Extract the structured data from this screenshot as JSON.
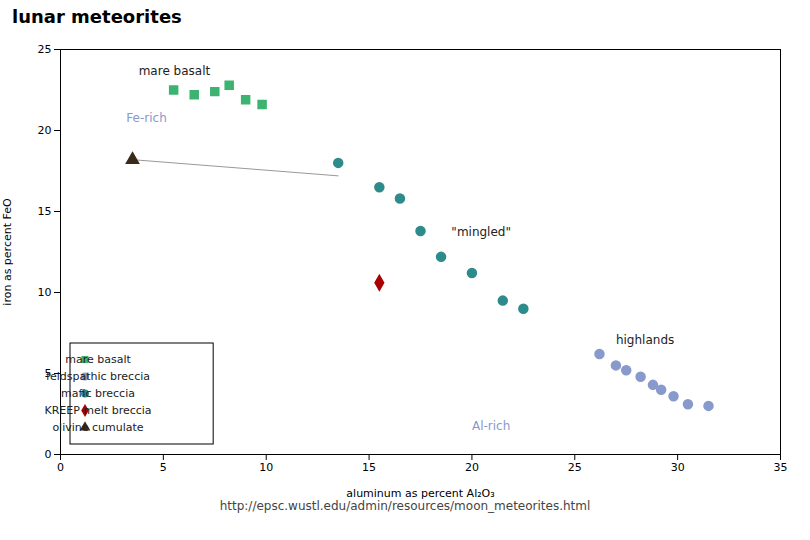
{
  "chart_data": {
    "type": "scatter",
    "title": "lunar meteorites",
    "caption": "http://epsc.wustl.edu/admin/resources/moon_meteorites.html",
    "x_label": "aluminum as percent Al₂O₃",
    "y_label": "iron as percent FeO",
    "xlim": [
      0,
      35
    ],
    "ylim": [
      0,
      25
    ],
    "xticks": [
      0,
      5,
      10,
      15,
      20,
      25,
      30,
      35
    ],
    "yticks": [
      0,
      5,
      10,
      15,
      20,
      25
    ],
    "grid": false,
    "legend": "lower left",
    "series": [
      {
        "name": "mare basalt",
        "color": "#3CB371",
        "marker": "square",
        "x": [
          5.5,
          6.5,
          7.5,
          8.2,
          9.0,
          9.8
        ],
        "values": [
          22.5,
          22.2,
          22.4,
          22.8,
          21.9,
          21.6
        ]
      },
      {
        "name": "feldspathic breccia",
        "color": "#8899CC",
        "marker": "circle",
        "x": [
          26.2,
          27.0,
          27.5,
          28.2,
          28.8,
          29.2,
          29.8,
          30.5,
          31.5
        ],
        "values": [
          6.2,
          5.5,
          5.2,
          4.8,
          4.3,
          4.0,
          3.6,
          3.1,
          3.0
        ]
      },
      {
        "name": "mafic breccia",
        "color": "#2E8B8B",
        "marker": "circle",
        "x": [
          13.5,
          15.5,
          16.5,
          17.5,
          18.5,
          20.0,
          21.5,
          22.5
        ],
        "values": [
          18.0,
          16.5,
          15.8,
          13.8,
          12.2,
          11.2,
          9.5,
          9.0
        ]
      },
      {
        "name": "KREEP melt breccia",
        "color": "#AA0000",
        "marker": "diamond",
        "x": [
          15.5
        ],
        "values": [
          10.6
        ]
      },
      {
        "name": "olivine cumulate",
        "color": "#3A2A1A",
        "marker": "triangle",
        "x": [
          3.5
        ],
        "values": [
          18.2
        ]
      },
      {
        "type": "line",
        "color": "#999999",
        "x": [
          3.5,
          13.5
        ],
        "values": [
          18.2,
          17.2
        ]
      }
    ],
    "annotations": [
      {
        "text": "mare basalt",
        "x": 3.8,
        "y": 23.4,
        "color": "#222222"
      },
      {
        "text": "Fe-rich",
        "x": 3.2,
        "y": 20.5,
        "color": "#8899CC"
      },
      {
        "text": "\"mingled\"",
        "x": 19.0,
        "y": 13.5,
        "color": "#222222"
      },
      {
        "text": "highlands",
        "x": 27.0,
        "y": 6.8,
        "color": "#222222"
      },
      {
        "text": "Al-rich",
        "x": 20.0,
        "y": 1.5,
        "color": "#8899CC"
      }
    ]
  }
}
